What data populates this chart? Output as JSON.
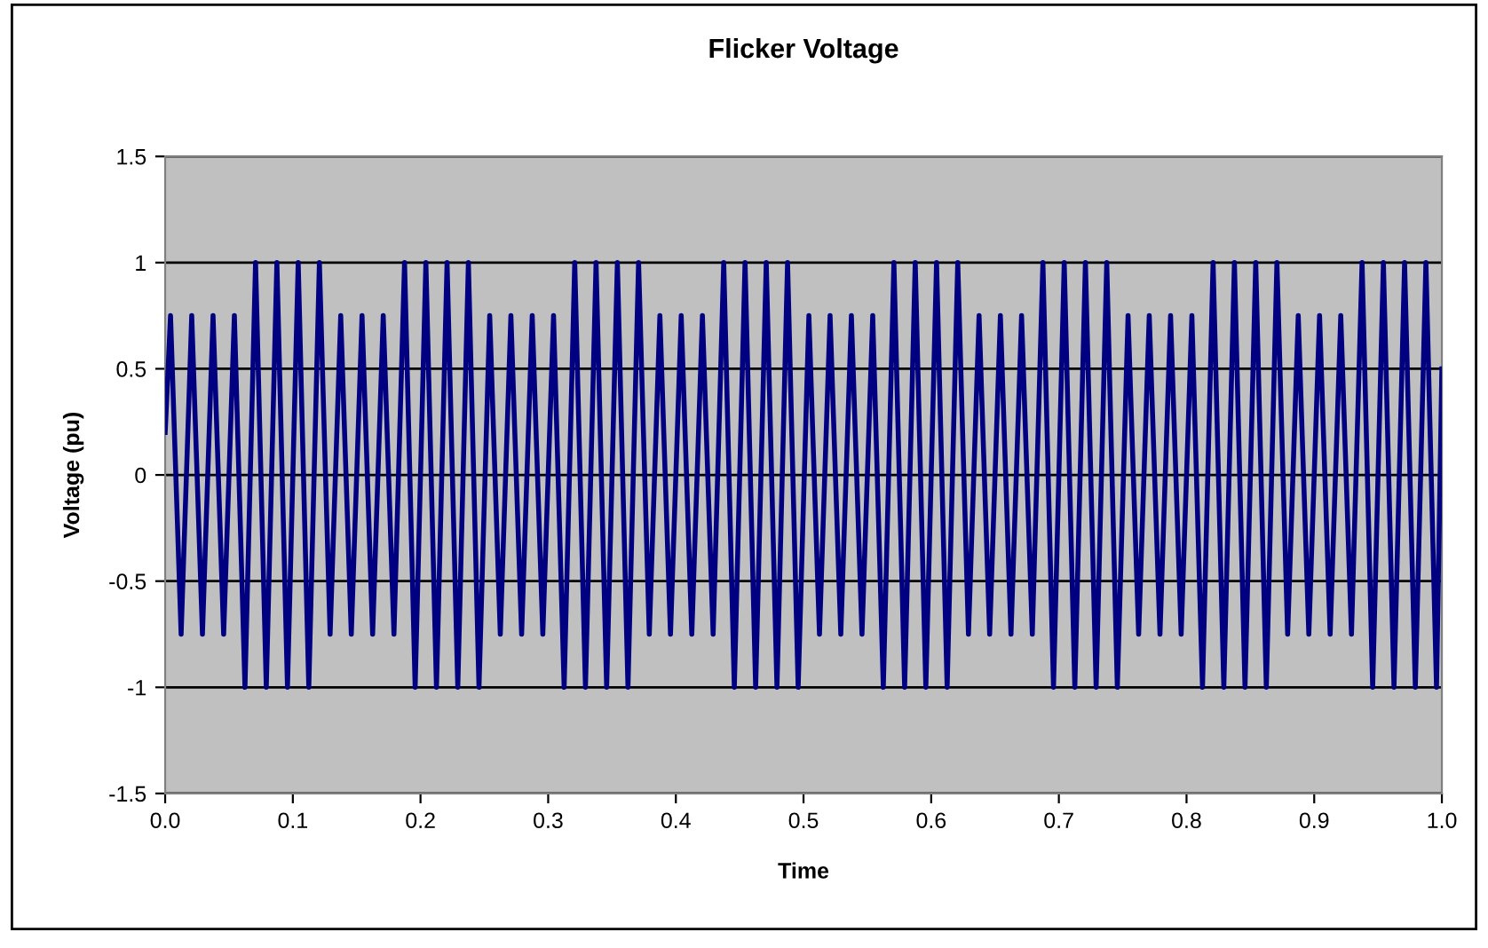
{
  "chart_data": {
    "type": "line",
    "title": "Flicker Voltage",
    "xlabel": "Time",
    "ylabel": "Voltage (pu)",
    "xlim": [
      0,
      1
    ],
    "ylim": [
      -1.5,
      1.5
    ],
    "xticks": [
      {
        "value": 0,
        "label": "0.0"
      },
      0.1,
      0.2,
      0.3,
      0.4,
      0.5,
      0.6,
      0.7,
      0.8,
      0.9,
      {
        "value": 1,
        "label": "1.0"
      }
    ],
    "yticks": [
      -1.5,
      -1,
      -0.5,
      0,
      0.5,
      1,
      1.5
    ],
    "grid": "y",
    "legend": false,
    "marker": "none",
    "line_style": "solid",
    "series": [
      {
        "color": "#000080",
        "x": [
          0,
          0.0042,
          0.0125,
          0.0208,
          0.0292,
          0.0375,
          0.0458,
          0.0542,
          0.0625,
          0.0708,
          0.0792,
          0.0875,
          0.0958,
          0.1042,
          0.1125,
          0.1208,
          0.1292,
          0.1375,
          0.1458,
          0.1542,
          0.1625,
          0.1708,
          0.1792,
          0.1875,
          0.1958,
          0.2042,
          0.2125,
          0.2208,
          0.2292,
          0.2375,
          0.2458,
          0.2542,
          0.2625,
          0.2708,
          0.2792,
          0.2875,
          0.2958,
          0.3042,
          0.3125,
          0.3208,
          0.3292,
          0.3375,
          0.3458,
          0.3542,
          0.3625,
          0.3708,
          0.3792,
          0.3875,
          0.3958,
          0.4042,
          0.4125,
          0.4208,
          0.4292,
          0.4375,
          0.4458,
          0.4542,
          0.4625,
          0.4708,
          0.4792,
          0.4875,
          0.4958,
          0.5042,
          0.5125,
          0.5208,
          0.5292,
          0.5375,
          0.5458,
          0.5542,
          0.5625,
          0.5708,
          0.5792,
          0.5875,
          0.5958,
          0.6042,
          0.6125,
          0.6208,
          0.6292,
          0.6375,
          0.6458,
          0.6542,
          0.6625,
          0.6708,
          0.6792,
          0.6875,
          0.6958,
          0.7042,
          0.7125,
          0.7208,
          0.7292,
          0.7375,
          0.7458,
          0.7542,
          0.7625,
          0.7708,
          0.7792,
          0.7875,
          0.7958,
          0.8042,
          0.8125,
          0.8208,
          0.8292,
          0.8375,
          0.8458,
          0.8542,
          0.8625,
          0.8708,
          0.8792,
          0.8875,
          0.8958,
          0.9042,
          0.9125,
          0.9208,
          0.9292,
          0.9375,
          0.9458,
          0.9542,
          0.9625,
          0.9708,
          0.9792,
          0.9875,
          0.9958,
          1
        ],
        "values": [
          0.2,
          0.75,
          -0.75,
          0.75,
          -0.75,
          0.75,
          -0.75,
          0.75,
          -1,
          1,
          -1,
          1,
          -1,
          1,
          -1,
          1,
          -0.75,
          0.75,
          -0.75,
          0.75,
          -0.75,
          0.75,
          -0.75,
          1,
          -1,
          1,
          -1,
          1,
          -1,
          1,
          -1,
          0.75,
          -0.75,
          0.75,
          -0.75,
          0.75,
          -0.75,
          0.75,
          -1,
          1,
          -1,
          1,
          -1,
          1,
          -1,
          1,
          -0.75,
          0.75,
          -0.75,
          0.75,
          -0.75,
          0.75,
          -0.75,
          1,
          -1,
          1,
          -1,
          1,
          -1,
          1,
          -1,
          0.75,
          -0.75,
          0.75,
          -0.75,
          0.75,
          -0.75,
          0.75,
          -1,
          1,
          -1,
          1,
          -1,
          1,
          -1,
          1,
          -0.75,
          0.75,
          -0.75,
          0.75,
          -0.75,
          0.75,
          -0.75,
          1,
          -1,
          1,
          -1,
          1,
          -1,
          1,
          -1,
          0.75,
          -0.75,
          0.75,
          -0.75,
          0.75,
          -0.75,
          0.75,
          -1,
          1,
          -1,
          1,
          -1,
          1,
          -1,
          1,
          -0.75,
          0.75,
          -0.75,
          0.75,
          -0.75,
          0.75,
          -0.75,
          1,
          -1,
          1,
          -1,
          1,
          -1,
          1,
          -1,
          0.5
        ]
      }
    ]
  }
}
